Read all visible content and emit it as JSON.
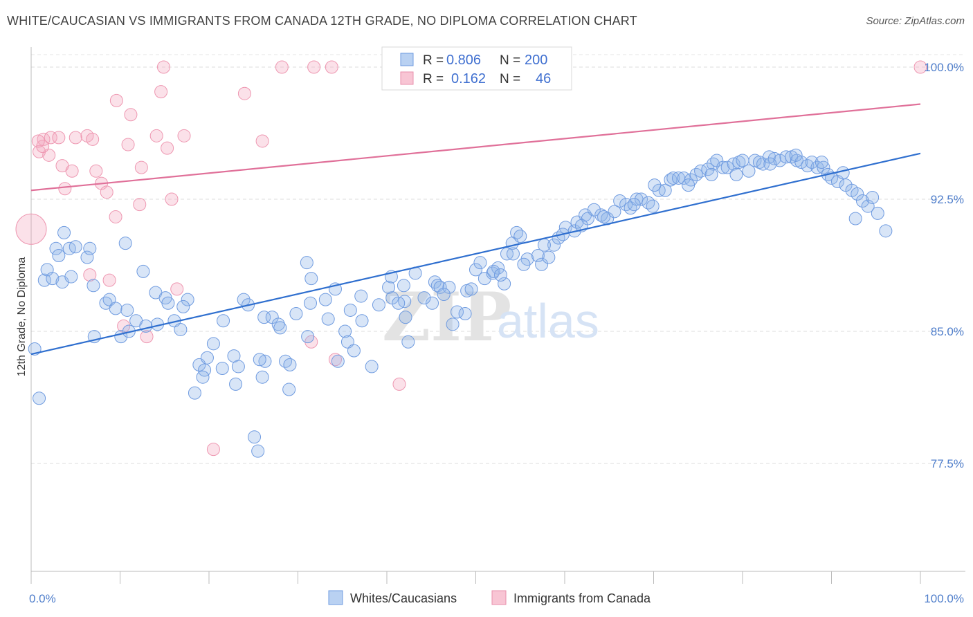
{
  "title": "WHITE/CAUCASIAN VS IMMIGRANTS FROM CANADA 12TH GRADE, NO DIPLOMA CORRELATION CHART",
  "source": "Source: ZipAtlas.com",
  "watermark": {
    "zip": "ZIP",
    "atlas": "atlas"
  },
  "colors": {
    "blue": "#8fb4e8",
    "blue_line": "#2f6fcf",
    "pink": "#f4a9bf",
    "pink_line": "#e07099",
    "accent_text": "#4f7ecb"
  },
  "legend": {
    "rows": [
      {
        "r_label": "R =",
        "r_value": "0.806",
        "n_label": "N =",
        "n_value": "200"
      },
      {
        "r_label": "R =",
        "r_value": "0.162",
        "n_label": "N =",
        "n_value": "46"
      }
    ]
  },
  "bottom_legend": {
    "blue": "Whites/Caucasians",
    "pink": "Immigrants from Canada"
  },
  "chart_data": {
    "type": "scatter",
    "title": "WHITE/CAUCASIAN VS IMMIGRANTS FROM CANADA 12TH GRADE, NO DIPLOMA CORRELATION CHART",
    "xlabel": "",
    "ylabel": "12th Grade, No Diploma",
    "xlim": [
      0,
      100
    ],
    "ylim": [
      71.5,
      100.5
    ],
    "x_tick_labels": [
      "0.0%",
      "100.0%"
    ],
    "y_ticks": [
      77.5,
      85.0,
      92.5,
      100.0
    ],
    "y_tick_labels": [
      "77.5%",
      "85.0%",
      "92.5%",
      "100.0%"
    ],
    "grid": true,
    "legend_position": "top-center",
    "series": [
      {
        "name": "Whites/Caucasians",
        "color": "#8fb4e8",
        "trend": {
          "x": [
            0,
            100
          ],
          "y": [
            83.7,
            95.1
          ]
        },
        "points": [
          [
            0.4,
            84.0
          ],
          [
            0.9,
            81.2
          ],
          [
            1.5,
            87.9
          ],
          [
            1.8,
            88.5
          ],
          [
            2.4,
            88.0
          ],
          [
            2.8,
            89.7
          ],
          [
            3.1,
            89.3
          ],
          [
            3.5,
            87.8
          ],
          [
            3.7,
            90.6
          ],
          [
            4.3,
            89.7
          ],
          [
            4.5,
            88.1
          ],
          [
            5.0,
            89.8
          ],
          [
            6.3,
            89.2
          ],
          [
            6.6,
            89.7
          ],
          [
            7.0,
            87.6
          ],
          [
            7.1,
            84.7
          ],
          [
            8.4,
            86.6
          ],
          [
            8.8,
            86.8
          ],
          [
            9.5,
            86.3
          ],
          [
            10.1,
            84.7
          ],
          [
            10.6,
            90.0
          ],
          [
            11.0,
            85.0
          ],
          [
            11.8,
            85.6
          ],
          [
            12.6,
            88.4
          ],
          [
            14.0,
            87.2
          ],
          [
            14.2,
            85.4
          ],
          [
            15.1,
            86.9
          ],
          [
            16.1,
            85.6
          ],
          [
            16.8,
            85.1
          ],
          [
            17.6,
            86.8
          ],
          [
            18.4,
            81.5
          ],
          [
            18.9,
            83.1
          ],
          [
            19.5,
            82.8
          ],
          [
            20.5,
            84.3
          ],
          [
            19.8,
            83.5
          ],
          [
            21.6,
            85.6
          ],
          [
            21.5,
            82.9
          ],
          [
            22.8,
            83.6
          ],
          [
            23.3,
            83.0
          ],
          [
            23.9,
            86.8
          ],
          [
            24.4,
            86.5
          ],
          [
            26.2,
            85.8
          ],
          [
            26.0,
            82.4
          ],
          [
            26.3,
            83.3
          ],
          [
            27.1,
            85.8
          ],
          [
            25.1,
            79.0
          ],
          [
            25.5,
            78.2
          ],
          [
            27.8,
            85.4
          ],
          [
            28.6,
            83.3
          ],
          [
            29.1,
            83.1
          ],
          [
            31.0,
            88.9
          ],
          [
            31.4,
            86.6
          ],
          [
            29.8,
            86.0
          ],
          [
            29.0,
            81.7
          ],
          [
            31.5,
            88.0
          ],
          [
            33.1,
            86.8
          ],
          [
            34.2,
            87.4
          ],
          [
            34.5,
            83.3
          ],
          [
            35.3,
            85.0
          ],
          [
            35.6,
            84.4
          ],
          [
            38.3,
            83.0
          ],
          [
            37.2,
            85.6
          ],
          [
            36.3,
            83.9
          ],
          [
            37.1,
            87.0
          ],
          [
            40.6,
            86.9
          ],
          [
            40.2,
            87.5
          ],
          [
            42.1,
            85.8
          ],
          [
            40.5,
            88.1
          ],
          [
            41.9,
            87.6
          ],
          [
            43.2,
            88.3
          ],
          [
            42.0,
            86.7
          ],
          [
            42.4,
            84.4
          ],
          [
            45.4,
            87.8
          ],
          [
            45.7,
            87.6
          ],
          [
            45.1,
            86.6
          ],
          [
            46.0,
            87.5
          ],
          [
            47.0,
            87.5
          ],
          [
            47.9,
            86.1
          ],
          [
            47.4,
            85.4
          ],
          [
            48.8,
            86.0
          ],
          [
            49.0,
            87.3
          ],
          [
            50.0,
            88.5
          ],
          [
            50.5,
            88.9
          ],
          [
            51.0,
            88.0
          ],
          [
            51.9,
            88.3
          ],
          [
            52.5,
            88.6
          ],
          [
            52.0,
            88.4
          ],
          [
            53.2,
            87.7
          ],
          [
            53.5,
            89.4
          ],
          [
            54.1,
            90.0
          ],
          [
            54.6,
            90.6
          ],
          [
            55.0,
            90.4
          ],
          [
            55.8,
            89.1
          ],
          [
            55.4,
            88.8
          ],
          [
            57.0,
            89.3
          ],
          [
            57.4,
            88.8
          ],
          [
            58.2,
            89.2
          ],
          [
            58.8,
            89.9
          ],
          [
            59.3,
            90.3
          ],
          [
            60.1,
            90.9
          ],
          [
            61.1,
            90.7
          ],
          [
            61.4,
            91.2
          ],
          [
            62.3,
            91.6
          ],
          [
            62.6,
            91.4
          ],
          [
            63.3,
            91.9
          ],
          [
            64.1,
            91.6
          ],
          [
            64.8,
            91.4
          ],
          [
            65.6,
            91.8
          ],
          [
            66.2,
            92.4
          ],
          [
            66.9,
            92.2
          ],
          [
            67.4,
            92.0
          ],
          [
            68.1,
            92.5
          ],
          [
            68.6,
            92.5
          ],
          [
            69.4,
            92.3
          ],
          [
            69.9,
            92.1
          ],
          [
            70.6,
            93.0
          ],
          [
            71.3,
            93.0
          ],
          [
            71.9,
            93.6
          ],
          [
            72.2,
            93.7
          ],
          [
            72.8,
            93.7
          ],
          [
            73.4,
            93.7
          ],
          [
            74.2,
            93.6
          ],
          [
            74.8,
            93.9
          ],
          [
            75.3,
            94.1
          ],
          [
            76.1,
            94.2
          ],
          [
            76.7,
            94.5
          ],
          [
            77.1,
            94.7
          ],
          [
            77.8,
            94.3
          ],
          [
            78.3,
            94.3
          ],
          [
            79.0,
            94.5
          ],
          [
            79.6,
            94.6
          ],
          [
            80.0,
            94.7
          ],
          [
            80.7,
            94.1
          ],
          [
            81.4,
            94.7
          ],
          [
            81.9,
            94.6
          ],
          [
            82.3,
            94.5
          ],
          [
            83.0,
            94.9
          ],
          [
            83.6,
            94.8
          ],
          [
            84.2,
            94.7
          ],
          [
            84.9,
            94.9
          ],
          [
            85.5,
            94.9
          ],
          [
            86.1,
            94.7
          ],
          [
            86.6,
            94.6
          ],
          [
            87.3,
            94.4
          ],
          [
            87.8,
            94.6
          ],
          [
            88.4,
            94.3
          ],
          [
            89.1,
            94.3
          ],
          [
            89.6,
            93.9
          ],
          [
            90.0,
            93.7
          ],
          [
            90.7,
            93.5
          ],
          [
            91.6,
            93.3
          ],
          [
            92.3,
            93.0
          ],
          [
            92.9,
            92.8
          ],
          [
            93.5,
            92.4
          ],
          [
            94.1,
            92.1
          ],
          [
            94.6,
            92.6
          ],
          [
            95.2,
            91.7
          ],
          [
            96.1,
            90.7
          ],
          [
            92.7,
            91.4
          ],
          [
            91.3,
            94.0
          ],
          [
            88.9,
            94.6
          ],
          [
            86.0,
            95.0
          ],
          [
            83.1,
            94.5
          ],
          [
            79.3,
            93.9
          ],
          [
            76.5,
            93.9
          ],
          [
            73.9,
            93.3
          ],
          [
            70.1,
            93.3
          ],
          [
            67.8,
            92.2
          ],
          [
            64.4,
            91.5
          ],
          [
            61.9,
            91.0
          ],
          [
            59.8,
            90.5
          ],
          [
            57.7,
            89.9
          ],
          [
            54.2,
            89.4
          ],
          [
            52.8,
            88.2
          ],
          [
            49.5,
            87.4
          ],
          [
            46.4,
            87.1
          ],
          [
            44.2,
            86.9
          ],
          [
            41.3,
            86.6
          ],
          [
            39.1,
            86.5
          ],
          [
            35.9,
            86.2
          ],
          [
            33.4,
            85.7
          ],
          [
            31.1,
            84.7
          ],
          [
            28.0,
            85.2
          ],
          [
            25.7,
            83.4
          ],
          [
            23.0,
            82.0
          ],
          [
            19.3,
            82.4
          ],
          [
            17.1,
            86.4
          ],
          [
            15.4,
            86.6
          ],
          [
            12.9,
            85.3
          ],
          [
            10.8,
            86.2
          ]
        ]
      },
      {
        "name": "Immigrants from Canada",
        "color": "#f4a9bf",
        "trend": {
          "x": [
            0,
            100
          ],
          "y": [
            93.0,
            97.9
          ]
        },
        "points": [
          [
            0.0,
            90.8
          ],
          [
            0.9,
            95.2
          ],
          [
            1.4,
            95.9
          ],
          [
            2.0,
            95.0
          ],
          [
            1.3,
            95.5
          ],
          [
            2.2,
            96.0
          ],
          [
            3.1,
            96.0
          ],
          [
            3.5,
            94.4
          ],
          [
            3.8,
            93.1
          ],
          [
            4.6,
            94.1
          ],
          [
            5.0,
            96.0
          ],
          [
            6.3,
            96.1
          ],
          [
            6.9,
            95.9
          ],
          [
            7.3,
            94.1
          ],
          [
            7.9,
            93.4
          ],
          [
            8.5,
            92.9
          ],
          [
            8.8,
            87.9
          ],
          [
            9.5,
            91.5
          ],
          [
            9.6,
            98.1
          ],
          [
            10.4,
            85.3
          ],
          [
            10.9,
            95.6
          ],
          [
            11.2,
            97.3
          ],
          [
            12.2,
            92.2
          ],
          [
            12.4,
            94.3
          ],
          [
            13.0,
            84.7
          ],
          [
            14.1,
            96.1
          ],
          [
            14.6,
            98.6
          ],
          [
            14.9,
            100.0
          ],
          [
            15.3,
            95.4
          ],
          [
            15.8,
            92.5
          ],
          [
            16.4,
            87.4
          ],
          [
            17.2,
            96.1
          ],
          [
            20.5,
            78.3
          ],
          [
            24.0,
            98.5
          ],
          [
            26.0,
            95.8
          ],
          [
            28.2,
            100.0
          ],
          [
            31.8,
            100.0
          ],
          [
            33.8,
            100.0
          ],
          [
            31.5,
            84.4
          ],
          [
            34.2,
            83.4
          ],
          [
            40.9,
            100.0
          ],
          [
            41.4,
            82.0
          ],
          [
            46.7,
            100.0
          ],
          [
            100.0,
            100.0
          ],
          [
            0.8,
            95.8
          ],
          [
            6.6,
            88.2
          ]
        ]
      }
    ]
  }
}
